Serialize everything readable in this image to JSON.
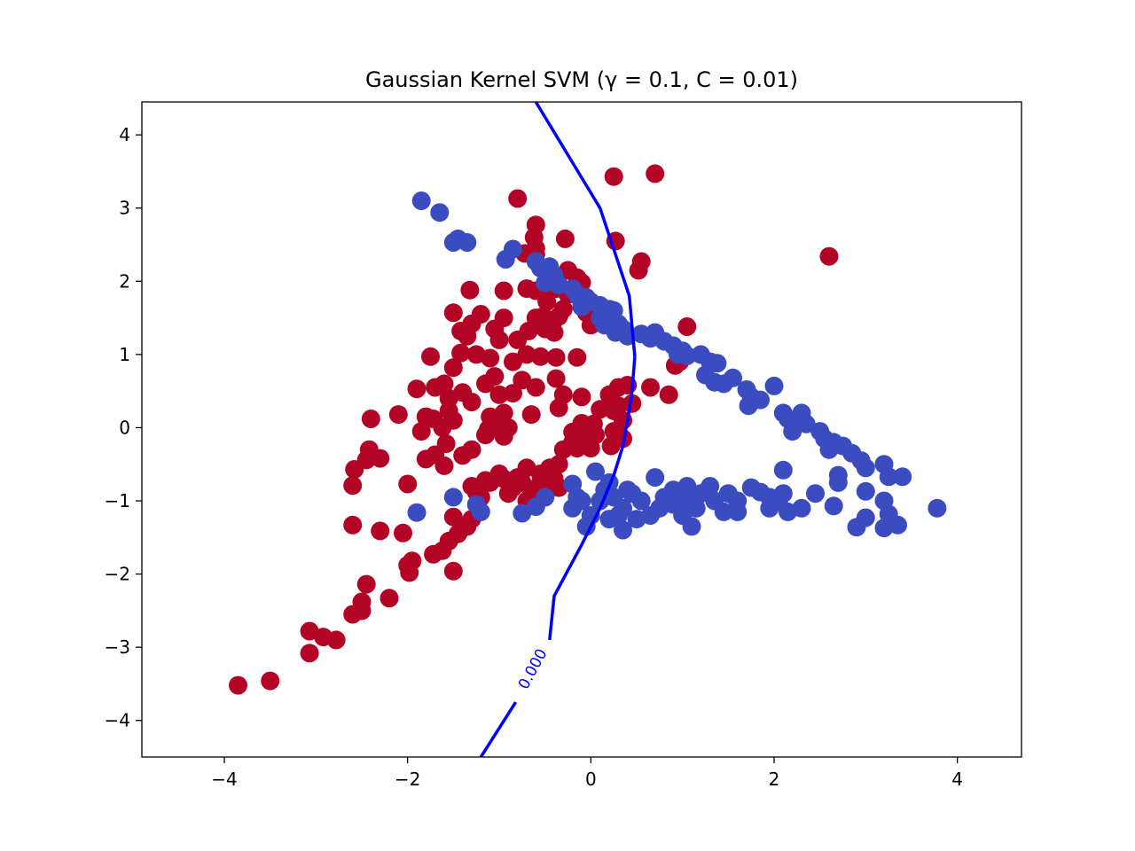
{
  "chart_data": {
    "type": "scatter",
    "title": "Gaussian Kernel SVM (γ = 0.1, C = 0.01)",
    "xlabel": "",
    "ylabel": "",
    "xlim": [
      -4.9,
      4.7
    ],
    "ylim": [
      -4.5,
      4.45
    ],
    "xticks": [
      -4,
      -2,
      0,
      2,
      4
    ],
    "yticks": [
      -4,
      -3,
      -2,
      -1,
      0,
      1,
      2,
      3,
      4
    ],
    "xtick_labels": [
      "−4",
      "−2",
      "0",
      "2",
      "4"
    ],
    "ytick_labels": [
      "−4",
      "−3",
      "−2",
      "−1",
      "0",
      "1",
      "2",
      "3",
      "4"
    ],
    "grid": false,
    "legend": "none",
    "colors": {
      "class_a": "#b40426",
      "class_b": "#3b4cc0",
      "boundary": "#0000ff"
    },
    "series": [
      {
        "points": [
          [
            -3.85,
            -3.52
          ],
          [
            -3.5,
            -3.46
          ],
          [
            -3.07,
            -3.08
          ],
          [
            -3.07,
            -2.78
          ],
          [
            -2.92,
            -2.86
          ],
          [
            -2.78,
            -2.9
          ],
          [
            -2.6,
            -2.55
          ],
          [
            -2.5,
            -2.5
          ],
          [
            -2.5,
            -2.38
          ],
          [
            -2.45,
            -2.14
          ],
          [
            -2.2,
            -2.33
          ],
          [
            -1.98,
            -1.98
          ],
          [
            -2.0,
            -1.88
          ],
          [
            -1.95,
            -1.82
          ],
          [
            -1.72,
            -1.73
          ],
          [
            -1.62,
            -1.68
          ],
          [
            -1.5,
            -1.96
          ],
          [
            -1.55,
            -1.55
          ],
          [
            -1.45,
            -1.45
          ],
          [
            -1.35,
            -1.35
          ],
          [
            -1.3,
            -1.25
          ],
          [
            -1.5,
            -1.22
          ],
          [
            -2.6,
            -1.33
          ],
          [
            -2.3,
            -1.41
          ],
          [
            -2.05,
            -1.44
          ],
          [
            -2.6,
            -0.79
          ],
          [
            -2.58,
            -0.57
          ],
          [
            -2.3,
            -0.42
          ],
          [
            -2.45,
            -0.44
          ],
          [
            -2.42,
            -0.3
          ],
          [
            -2.0,
            -0.77
          ],
          [
            -1.8,
            -0.43
          ],
          [
            -1.6,
            -0.52
          ],
          [
            -1.7,
            -0.37
          ],
          [
            -1.85,
            -0.05
          ],
          [
            -2.4,
            0.12
          ],
          [
            -2.1,
            0.18
          ],
          [
            -1.8,
            0.15
          ],
          [
            -1.72,
            0.12
          ],
          [
            -1.55,
            0.23
          ],
          [
            -1.5,
            0.1
          ],
          [
            -1.62,
            0.0
          ],
          [
            -1.58,
            -0.22
          ],
          [
            -1.4,
            -0.38
          ],
          [
            -1.3,
            -0.3
          ],
          [
            -1.15,
            -0.1
          ],
          [
            -1.12,
            -0.02
          ],
          [
            -0.95,
            -0.12
          ],
          [
            -0.9,
            0.0
          ],
          [
            -1.1,
            0.15
          ],
          [
            -1.3,
            0.35
          ],
          [
            -1.4,
            0.48
          ],
          [
            -1.55,
            0.4
          ],
          [
            -1.6,
            0.6
          ],
          [
            -1.7,
            0.55
          ],
          [
            -1.9,
            0.53
          ],
          [
            -1.75,
            0.97
          ],
          [
            -1.5,
            0.82
          ],
          [
            -1.42,
            1.02
          ],
          [
            -1.35,
            1.25
          ],
          [
            -1.42,
            1.32
          ],
          [
            -1.3,
            1.42
          ],
          [
            -1.2,
            1.55
          ],
          [
            -1.05,
            1.35
          ],
          [
            -1.0,
            1.2
          ],
          [
            -0.95,
            1.5
          ],
          [
            -1.25,
            1.0
          ],
          [
            -1.1,
            0.95
          ],
          [
            -1.05,
            0.7
          ],
          [
            -1.15,
            0.6
          ],
          [
            -0.85,
            0.9
          ],
          [
            -0.75,
            0.65
          ],
          [
            -0.85,
            0.47
          ],
          [
            -1.0,
            0.45
          ],
          [
            -0.95,
            0.2
          ],
          [
            -1.0,
            0.08
          ],
          [
            -0.6,
            0.55
          ],
          [
            -0.65,
            0.18
          ],
          [
            -0.6,
            1.5
          ],
          [
            -0.68,
            1.32
          ],
          [
            -0.8,
            1.2
          ],
          [
            -0.7,
            1.0
          ],
          [
            -0.55,
            0.97
          ],
          [
            -0.38,
            0.96
          ],
          [
            -0.15,
            0.96
          ],
          [
            -0.38,
            0.67
          ],
          [
            -0.3,
            0.45
          ],
          [
            -0.35,
            0.27
          ],
          [
            -0.1,
            0.42
          ],
          [
            -0.7,
            1.9
          ],
          [
            -0.6,
            1.87
          ],
          [
            -0.5,
            1.85
          ],
          [
            -0.48,
            1.72
          ],
          [
            -0.52,
            1.52
          ],
          [
            -0.42,
            1.42
          ],
          [
            -0.35,
            1.52
          ],
          [
            -0.4,
            1.3
          ],
          [
            -0.5,
            1.35
          ],
          [
            -0.3,
            1.62
          ],
          [
            -0.38,
            1.9
          ],
          [
            -0.25,
            2.15
          ],
          [
            -0.15,
            2.05
          ],
          [
            -0.1,
            1.98
          ],
          [
            -0.35,
            1.95
          ],
          [
            -0.95,
            1.87
          ],
          [
            -1.32,
            1.88
          ],
          [
            -1.5,
            1.57
          ],
          [
            -0.8,
            3.13
          ],
          [
            -0.6,
            2.77
          ],
          [
            -0.62,
            2.6
          ],
          [
            -0.6,
            2.45
          ],
          [
            -0.72,
            2.38
          ],
          [
            -0.6,
            2.37
          ],
          [
            -0.28,
            2.58
          ],
          [
            -0.25,
            1.82
          ],
          [
            -0.1,
            1.7
          ],
          [
            -0.05,
            1.57
          ],
          [
            0.0,
            1.4
          ],
          [
            -0.3,
            -0.3
          ],
          [
            -0.2,
            -0.2
          ],
          [
            -0.1,
            -0.12
          ],
          [
            -0.05,
            -0.05
          ],
          [
            0.05,
            -0.1
          ],
          [
            0.0,
            -0.28
          ],
          [
            -0.15,
            -0.28
          ],
          [
            -0.2,
            -0.06
          ],
          [
            -0.1,
            0.06
          ],
          [
            0.03,
            0.05
          ],
          [
            -0.35,
            -0.5
          ],
          [
            -0.45,
            -0.55
          ],
          [
            -0.4,
            -0.7
          ],
          [
            -0.5,
            -0.62
          ],
          [
            -0.55,
            -0.75
          ],
          [
            -0.6,
            -0.85
          ],
          [
            -0.65,
            -0.9
          ],
          [
            -0.75,
            -0.75
          ],
          [
            -0.8,
            -0.68
          ],
          [
            -0.85,
            -0.82
          ],
          [
            -0.9,
            -0.9
          ],
          [
            -0.95,
            -0.7
          ],
          [
            -1.0,
            -0.63
          ],
          [
            -1.1,
            -0.75
          ],
          [
            -1.2,
            -0.95
          ],
          [
            -0.7,
            -1.0
          ],
          [
            -0.6,
            -1.05
          ],
          [
            -0.5,
            -0.95
          ],
          [
            -0.45,
            -0.83
          ],
          [
            -0.35,
            -0.82
          ],
          [
            -0.55,
            -0.63
          ],
          [
            -0.7,
            -0.55
          ],
          [
            -1.25,
            -0.88
          ],
          [
            -1.3,
            -0.8
          ],
          [
            -1.15,
            -0.72
          ],
          [
            0.1,
            0.25
          ],
          [
            0.25,
            0.23
          ],
          [
            0.3,
            0.3
          ],
          [
            0.45,
            0.33
          ],
          [
            0.35,
            0.1
          ],
          [
            0.2,
            0.45
          ],
          [
            0.3,
            0.55
          ],
          [
            0.4,
            0.58
          ],
          [
            0.65,
            0.55
          ],
          [
            0.85,
            0.45
          ],
          [
            0.25,
            -0.05
          ],
          [
            0.22,
            -0.25
          ],
          [
            0.35,
            -0.15
          ],
          [
            0.25,
            3.43
          ],
          [
            0.7,
            3.47
          ],
          [
            0.27,
            2.55
          ],
          [
            0.55,
            2.27
          ],
          [
            0.52,
            2.15
          ],
          [
            0.97,
            0.9
          ],
          [
            1.05,
            1.38
          ],
          [
            0.92,
            0.85
          ],
          [
            2.6,
            2.34
          ]
        ]
      },
      {
        "points": [
          [
            -1.85,
            3.1
          ],
          [
            -1.65,
            2.94
          ],
          [
            -1.5,
            2.53
          ],
          [
            -1.45,
            2.58
          ],
          [
            -1.35,
            2.53
          ],
          [
            -0.93,
            2.3
          ],
          [
            -0.85,
            2.44
          ],
          [
            -0.6,
            2.27
          ],
          [
            -0.55,
            2.18
          ],
          [
            -0.45,
            2.2
          ],
          [
            -0.4,
            2.08
          ],
          [
            -0.5,
            1.98
          ],
          [
            -0.35,
            1.95
          ],
          [
            -0.2,
            1.9
          ],
          [
            -0.15,
            1.82
          ],
          [
            -0.05,
            1.78
          ],
          [
            -0.1,
            1.65
          ],
          [
            0.0,
            1.72
          ],
          [
            0.1,
            1.67
          ],
          [
            0.15,
            1.58
          ],
          [
            0.2,
            1.62
          ],
          [
            0.25,
            1.6
          ],
          [
            0.1,
            1.5
          ],
          [
            0.2,
            1.48
          ],
          [
            0.3,
            1.42
          ],
          [
            0.35,
            1.35
          ],
          [
            0.15,
            1.4
          ],
          [
            0.27,
            1.3
          ],
          [
            0.4,
            1.25
          ],
          [
            0.55,
            1.28
          ],
          [
            0.65,
            1.22
          ],
          [
            0.7,
            1.3
          ],
          [
            0.8,
            1.18
          ],
          [
            0.9,
            1.12
          ],
          [
            0.95,
            1.0
          ],
          [
            1.0,
            1.05
          ],
          [
            1.05,
            0.98
          ],
          [
            1.2,
            1.0
          ],
          [
            1.3,
            0.9
          ],
          [
            1.38,
            0.88
          ],
          [
            1.25,
            0.72
          ],
          [
            1.35,
            0.62
          ],
          [
            1.45,
            0.6
          ],
          [
            1.55,
            0.68
          ],
          [
            1.7,
            0.52
          ],
          [
            1.75,
            0.42
          ],
          [
            1.85,
            0.38
          ],
          [
            2.0,
            0.57
          ],
          [
            1.72,
            0.3
          ],
          [
            2.1,
            0.2
          ],
          [
            2.15,
            0.12
          ],
          [
            2.3,
            0.2
          ],
          [
            2.25,
            0.1
          ],
          [
            2.35,
            0.05
          ],
          [
            2.2,
            -0.05
          ],
          [
            2.5,
            -0.05
          ],
          [
            2.55,
            -0.15
          ],
          [
            2.65,
            -0.2
          ],
          [
            2.6,
            -0.3
          ],
          [
            2.75,
            -0.25
          ],
          [
            2.85,
            -0.35
          ],
          [
            2.95,
            -0.45
          ],
          [
            3.0,
            -0.55
          ],
          [
            3.2,
            -0.5
          ],
          [
            3.25,
            -0.67
          ],
          [
            3.4,
            -0.67
          ],
          [
            2.7,
            -0.65
          ],
          [
            2.7,
            -0.75
          ],
          [
            3.0,
            -0.87
          ],
          [
            3.2,
            -1.0
          ],
          [
            3.25,
            -1.18
          ],
          [
            3.35,
            -1.33
          ],
          [
            3.2,
            -1.37
          ],
          [
            3.0,
            -1.23
          ],
          [
            2.9,
            -1.36
          ],
          [
            3.78,
            -1.1
          ],
          [
            2.65,
            -1.07
          ],
          [
            2.45,
            -0.9
          ],
          [
            2.1,
            -0.58
          ],
          [
            2.1,
            -0.9
          ],
          [
            2.05,
            -1.0
          ],
          [
            2.15,
            -1.15
          ],
          [
            2.3,
            -1.1
          ],
          [
            1.95,
            -0.95
          ],
          [
            1.95,
            -1.1
          ],
          [
            1.85,
            -0.88
          ],
          [
            1.75,
            -0.82
          ],
          [
            1.6,
            -1.0
          ],
          [
            1.6,
            -1.15
          ],
          [
            1.5,
            -0.9
          ],
          [
            1.45,
            -1.15
          ],
          [
            1.35,
            -1.0
          ],
          [
            1.3,
            -0.8
          ],
          [
            1.2,
            -0.9
          ],
          [
            1.15,
            -1.1
          ],
          [
            1.05,
            -1.0
          ],
          [
            1.05,
            -0.8
          ],
          [
            1.0,
            -1.2
          ],
          [
            1.1,
            -1.35
          ],
          [
            0.9,
            -1.05
          ],
          [
            0.9,
            -0.85
          ],
          [
            0.8,
            -0.95
          ],
          [
            0.75,
            -1.1
          ],
          [
            0.7,
            -0.68
          ],
          [
            0.65,
            -1.2
          ],
          [
            0.55,
            -1.0
          ],
          [
            0.5,
            -1.25
          ],
          [
            0.45,
            -0.9
          ],
          [
            0.4,
            -0.85
          ],
          [
            0.35,
            -1.1
          ],
          [
            0.3,
            -1.2
          ],
          [
            0.35,
            -1.4
          ],
          [
            0.25,
            -0.95
          ],
          [
            0.2,
            -1.25
          ],
          [
            0.2,
            -0.75
          ],
          [
            0.15,
            -0.85
          ],
          [
            0.1,
            -1.0
          ],
          [
            0.05,
            -0.6
          ],
          [
            -0.05,
            -1.35
          ],
          [
            0.0,
            -1.2
          ],
          [
            -0.1,
            -1.0
          ],
          [
            -0.15,
            -0.95
          ],
          [
            -0.2,
            -0.77
          ],
          [
            -0.2,
            -1.1
          ],
          [
            -0.5,
            -0.95
          ],
          [
            -0.6,
            -1.08
          ],
          [
            -0.75,
            -1.17
          ],
          [
            -1.2,
            -1.15
          ],
          [
            -1.25,
            -1.05
          ],
          [
            -1.5,
            -0.95
          ],
          [
            -1.9,
            -1.16
          ]
        ]
      }
    ],
    "decision_boundary": {
      "level_label": "0.000",
      "points": [
        [
          0.48,
          0.97
        ],
        [
          0.45,
          0.5
        ],
        [
          0.4,
          0.1
        ],
        [
          0.35,
          -0.25
        ],
        [
          0.25,
          -0.65
        ],
        [
          0.1,
          -1.1
        ],
        [
          -0.1,
          -1.6
        ],
        [
          -0.4,
          -2.3
        ],
        [
          -0.9,
          -3.7
        ],
        [
          -1.2,
          -4.5
        ]
      ]
    }
  }
}
